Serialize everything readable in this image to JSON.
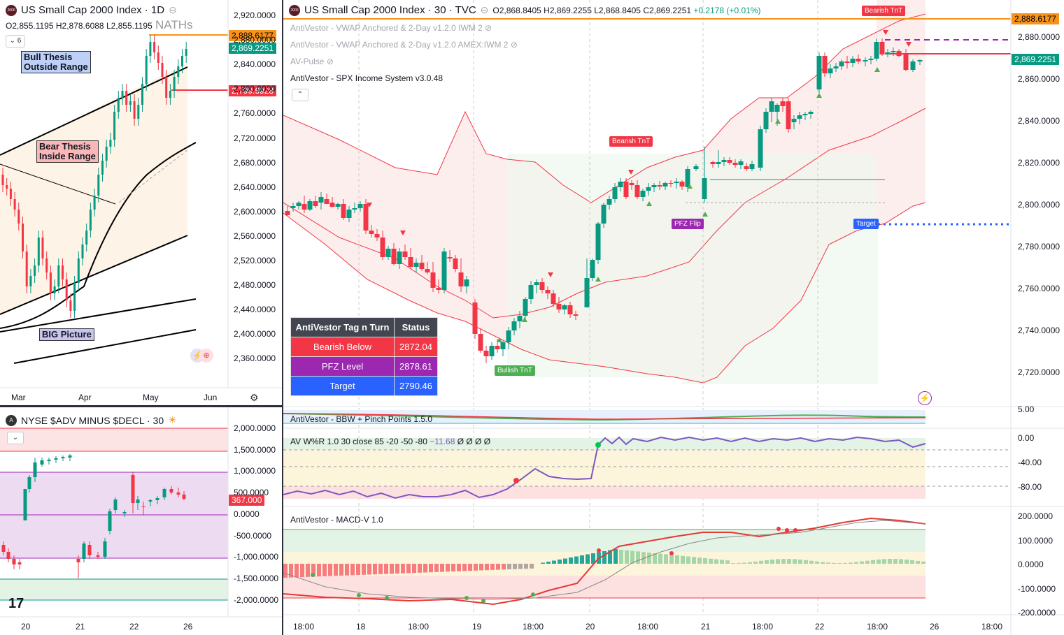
{
  "left_top": {
    "title": "US Small Cap 2000 Index · 1D",
    "ohlc": {
      "o": "O2,855.1195",
      "h": "H2,878.6088",
      "l": "L2,855.1195"
    },
    "interval_badge": "6",
    "naths": "NATHs",
    "notes": {
      "bull": "Bull Thesis\nOutside Range",
      "bear": "Bear Thesis\nInside Range",
      "big": "BIG Picture"
    },
    "price_labels": {
      "orange": "2,888.6177",
      "green": "2,869.2251",
      "red": "2,799.6928"
    },
    "y_ticks": [
      "2,920.0000",
      "2,880.0000",
      "2,840.0000",
      "2,800.0000",
      "2,760.0000",
      "2,720.0000",
      "2,680.0000",
      "2,640.0000",
      "2,600.0000",
      "2,560.0000",
      "2,520.0000",
      "2,480.0000",
      "2,440.0000",
      "2,400.0000",
      "2,360.0000"
    ],
    "x_ticks": [
      "Mar",
      "Apr",
      "May",
      "Jun"
    ]
  },
  "left_bottom": {
    "title": "NYSE $ADV MINUS $DECL · 30",
    "price_label": "367.000",
    "y_ticks": [
      "2,000.0000",
      "1,500.0000",
      "1,000.0000",
      "500.0000",
      "0.0000",
      "-500.0000",
      "-1,000.0000",
      "-1,500.0000",
      "-2,000.0000"
    ],
    "x_ticks": [
      "20",
      "21",
      "22",
      "26"
    ]
  },
  "main": {
    "title": "US Small Cap 2000 Index · 30 · TVC",
    "ohlc": {
      "o": "O2,868.8405",
      "h": "H2,869.2255",
      "l": "L2,868.8405",
      "c": "C2,869.2251",
      "chg": "+0.2178 (+0.01%)"
    },
    "indicators": [
      "AntiVestor - VWAP Anchored & 2-Day v1.2.0 IWM 2",
      "AntiVestor - VWAP Anchored & 2-Day v1.2.0 AMEX:IWM 2",
      "AV-Pulse",
      "AntiVestor - SPX Income System v3.0.48"
    ],
    "tags": {
      "bearish_top": "Bearish TnT",
      "bearish_mid": "Bearish TnT",
      "bullish": "Bullish TnT",
      "pfz": "PFZ Flip",
      "target": "Target"
    },
    "price_labels": {
      "orange": "2,888.6177",
      "green": "2,869.2251"
    },
    "y_ticks": [
      "2,880.0000",
      "2,860.0000",
      "2,840.0000",
      "2,820.0000",
      "2,800.0000",
      "2,780.0000",
      "2,760.0000",
      "2,740.0000",
      "2,720.0000"
    ],
    "table": {
      "headers": [
        "AntiVestor Tag n Turn",
        "Status"
      ],
      "rows": [
        {
          "label": "Bearish Below",
          "value": "2872.04",
          "color": "#f23645"
        },
        {
          "label": "PFZ Level",
          "value": "2878.61",
          "color": "#9c27b0"
        },
        {
          "label": "Target",
          "value": "2790.46",
          "color": "#2962ff"
        }
      ]
    },
    "bbw": {
      "title": "AntiVestor - BBW + Pinch Points 1.5.0",
      "y_tick": "5.00"
    },
    "wr": {
      "title": "AV W%R 1.0 30 close 85 -20 -50 -80",
      "value": "−11.68",
      "extras": "Ø Ø Ø Ø",
      "y_ticks": [
        "0.00",
        "-40.00",
        "-80.00"
      ]
    },
    "macd": {
      "title": "AntiVestor - MACD-V 1.0",
      "y_ticks": [
        "200.0000",
        "100.0000",
        "0.0000",
        "-100.0000",
        "-200.0000"
      ]
    },
    "x_ticks": [
      "18:00",
      "18",
      "18:00",
      "19",
      "18:00",
      "20",
      "18:00",
      "21",
      "18:00",
      "22",
      "18:00",
      "26",
      "18:00"
    ]
  },
  "colors": {
    "up": "#089981",
    "down": "#f23645",
    "orange": "#f7931a",
    "purple": "#9c27b0",
    "blue": "#2962ff"
  }
}
